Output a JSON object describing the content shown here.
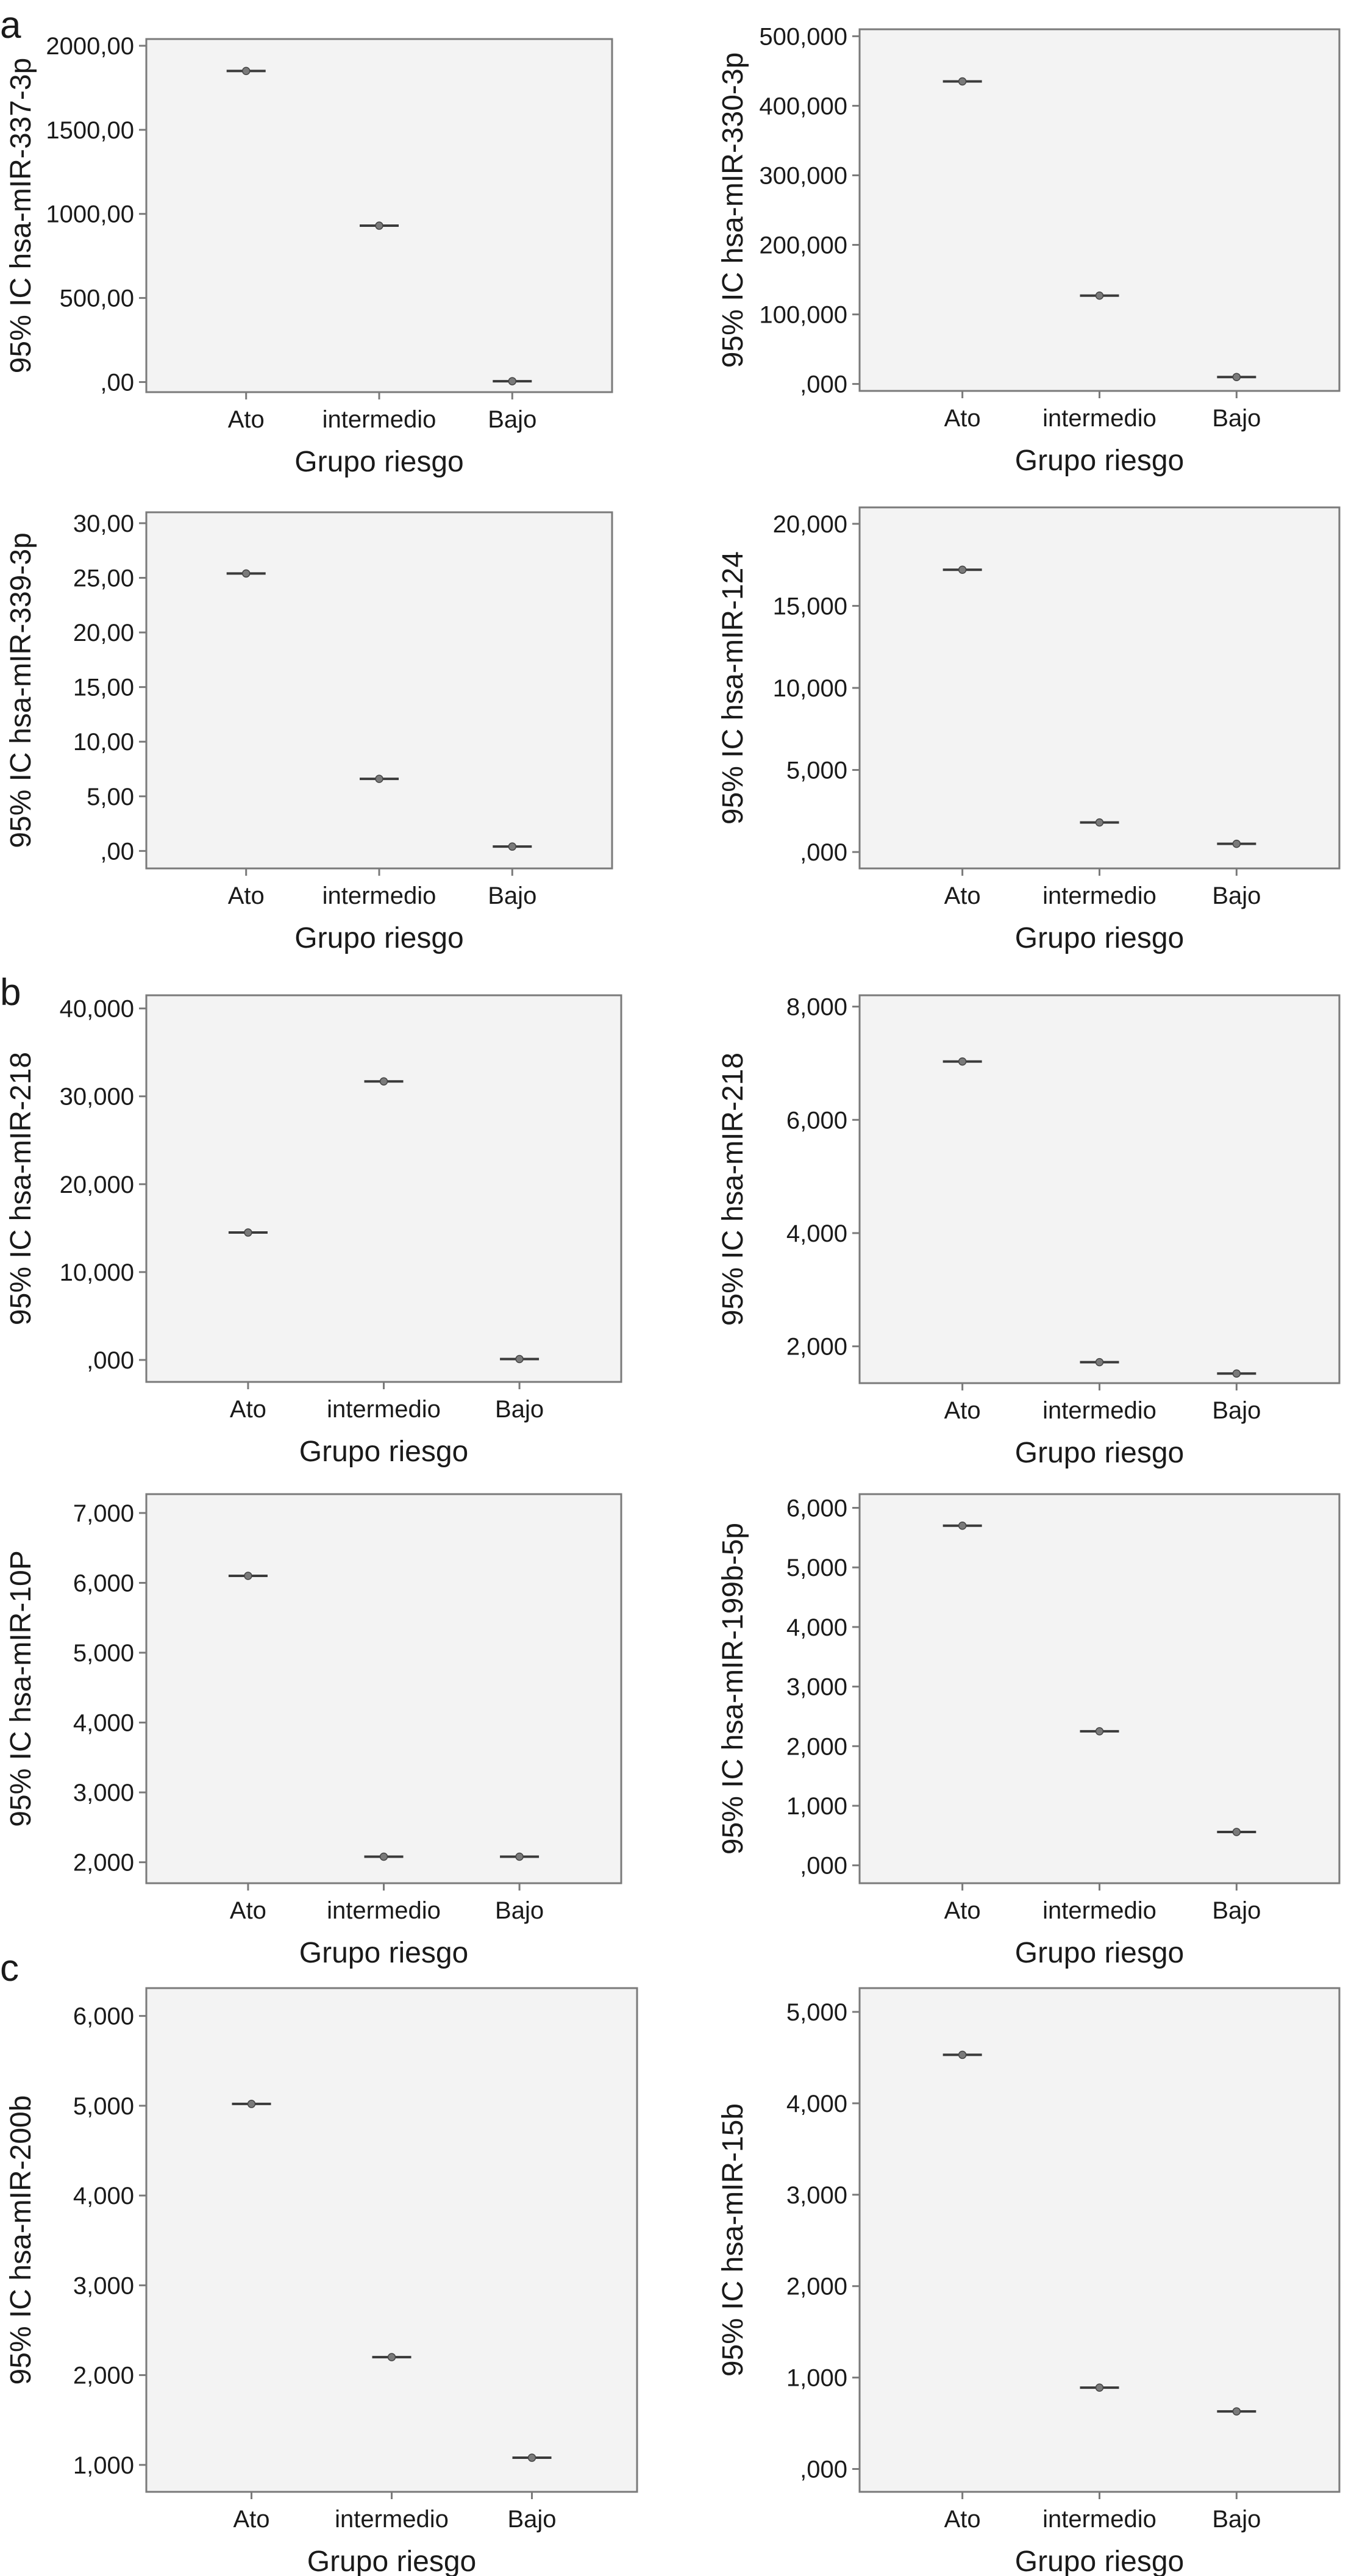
{
  "figure": {
    "panel_letters": [
      "a",
      "b",
      "c"
    ],
    "plot_bg": "#f3f3f3",
    "frame_color": "#7a7a7a",
    "marker_color": "#7a7a7a",
    "errorbar_color": "#3a3a3a"
  },
  "chart_data": [
    {
      "type": "scatter",
      "panel": "a",
      "xlabel": "Grupo riesgo",
      "ylabel": "95% IC hsa-mIR-337-3p",
      "categories": [
        "Ato",
        "intermedio",
        "Bajo"
      ],
      "values": [
        1850,
        930,
        5
      ],
      "ylim": [
        -60,
        2040
      ],
      "yticks": [
        0,
        500,
        1000,
        1500,
        2000
      ],
      "yticklabels": [
        ",00",
        "500,00",
        "1000,00",
        "1500,00",
        "2000,00"
      ],
      "grid": false
    },
    {
      "type": "scatter",
      "panel": "a",
      "xlabel": "Grupo riesgo",
      "ylabel": "95% IC hsa-mIR-330-3p",
      "categories": [
        "Ato",
        "intermedio",
        "Bajo"
      ],
      "values": [
        435000,
        127000,
        10000
      ],
      "ylim": [
        -10000,
        510000
      ],
      "yticks": [
        0,
        100000,
        200000,
        300000,
        400000,
        500000
      ],
      "yticklabels": [
        ",000",
        "100,000",
        "200,000",
        "300,000",
        "400,000",
        "500,000"
      ],
      "grid": false
    },
    {
      "type": "scatter",
      "panel": "a",
      "xlabel": "Grupo riesgo",
      "ylabel": "95% IC hsa-mIR-339-3p",
      "categories": [
        "Ato",
        "intermedio",
        "Bajo"
      ],
      "values": [
        25.4,
        6.6,
        0.4
      ],
      "ylim": [
        -1.6,
        31
      ],
      "yticks": [
        0,
        5,
        10,
        15,
        20,
        25,
        30
      ],
      "yticklabels": [
        ",00",
        "5,00",
        "10,00",
        "15,00",
        "20,00",
        "25,00",
        "30,00"
      ],
      "grid": false
    },
    {
      "type": "scatter",
      "panel": "a",
      "xlabel": "Grupo riesgo",
      "ylabel": "95% IC hsa-mIR-124",
      "categories": [
        "Ato",
        "intermedio",
        "Bajo"
      ],
      "values": [
        17200,
        1800,
        500
      ],
      "ylim": [
        -1000,
        21000
      ],
      "yticks": [
        0,
        5000,
        10000,
        15000,
        20000
      ],
      "yticklabels": [
        ",000",
        "5,000",
        "10,000",
        "15,000",
        "20,000"
      ],
      "grid": false
    },
    {
      "type": "scatter",
      "panel": "b",
      "xlabel": "Grupo riesgo",
      "ylabel": "95% IC hsa-mIR-218",
      "categories": [
        "Ato",
        "intermedio",
        "Bajo"
      ],
      "values": [
        14500,
        31700,
        100
      ],
      "ylim": [
        -2500,
        41500
      ],
      "yticks": [
        0,
        10000,
        20000,
        30000,
        40000
      ],
      "yticklabels": [
        ",000",
        "10,000",
        "20,000",
        "30,000",
        "40,000"
      ],
      "grid": false
    },
    {
      "type": "scatter",
      "panel": "b",
      "xlabel": "Grupo riesgo",
      "ylabel": "95% IC hsa-mIR-218",
      "categories": [
        "Ato",
        "intermedio",
        "Bajo"
      ],
      "values": [
        7030,
        1720,
        1520
      ],
      "ylim": [
        1350,
        8200
      ],
      "yticks": [
        2000,
        4000,
        6000,
        8000
      ],
      "yticklabels": [
        "2,000",
        "4,000",
        "6,000",
        "8,000"
      ],
      "grid": false
    },
    {
      "type": "scatter",
      "panel": "b",
      "xlabel": "Grupo riesgo",
      "ylabel": "95% IC hsa-mIR-10P",
      "categories": [
        "Ato",
        "intermedio",
        "Bajo"
      ],
      "values": [
        6100,
        2080,
        2080
      ],
      "ylim": [
        1700,
        7270
      ],
      "yticks": [
        2000,
        3000,
        4000,
        5000,
        6000,
        7000
      ],
      "yticklabels": [
        "2,000",
        "3,000",
        "4,000",
        "5,000",
        "6,000",
        "7,000"
      ],
      "grid": false
    },
    {
      "type": "scatter",
      "panel": "b",
      "xlabel": "Grupo riesgo",
      "ylabel": "95% IC hsa-mIR-199b-5p",
      "categories": [
        "Ato",
        "intermedio",
        "Bajo"
      ],
      "values": [
        5700,
        2250,
        560
      ],
      "ylim": [
        -300,
        6230
      ],
      "yticks": [
        0,
        1000,
        2000,
        3000,
        4000,
        5000,
        6000
      ],
      "yticklabels": [
        ",000",
        "1,000",
        "2,000",
        "3,000",
        "4,000",
        "5,000",
        "6,000"
      ],
      "grid": false
    },
    {
      "type": "scatter",
      "panel": "c",
      "xlabel": "Grupo riesgo",
      "ylabel": "95% IC hsa-mIR-200b",
      "categories": [
        "Ato",
        "intermedio",
        "Bajo"
      ],
      "values": [
        5020,
        2200,
        1080
      ],
      "ylim": [
        700,
        6310
      ],
      "yticks": [
        1000,
        2000,
        3000,
        4000,
        5000,
        6000
      ],
      "yticklabels": [
        "1,000",
        "2,000",
        "3,000",
        "4,000",
        "5,000",
        "6,000"
      ],
      "grid": false
    },
    {
      "type": "scatter",
      "panel": "c",
      "xlabel": "Grupo riesgo",
      "ylabel": "95% IC hsa-mIR-15b",
      "categories": [
        "Ato",
        "intermedio",
        "Bajo"
      ],
      "values": [
        4530,
        890,
        630
      ],
      "ylim": [
        -250,
        5260
      ],
      "yticks": [
        0,
        1000,
        2000,
        3000,
        4000,
        5000
      ],
      "yticklabels": [
        ",000",
        "1,000",
        "2,000",
        "3,000",
        "4,000",
        "5,000"
      ],
      "grid": false
    }
  ]
}
